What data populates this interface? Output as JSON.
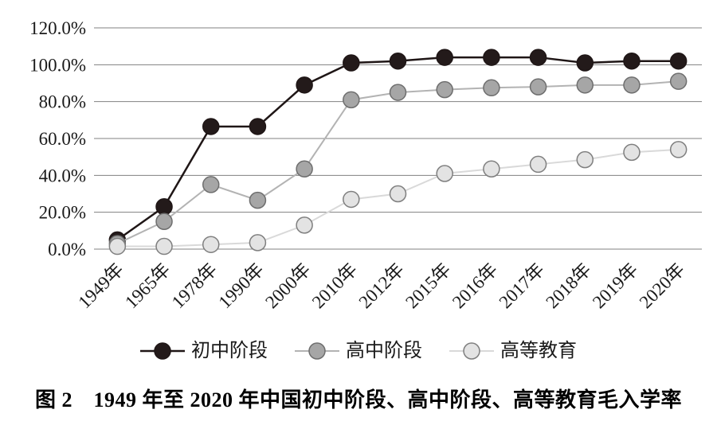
{
  "figure": {
    "caption": "图 2　1949 年至 2020 年中国初中阶段、高中阶段、高等教育毛入学率"
  },
  "chart_data": {
    "type": "line",
    "title": "",
    "xlabel": "",
    "ylabel": "",
    "categories": [
      "1949年",
      "1965年",
      "1978年",
      "1990年",
      "2000年",
      "2010年",
      "2012年",
      "2015年",
      "2016年",
      "2017年",
      "2018年",
      "2019年",
      "2020年"
    ],
    "series": [
      {
        "name": "初中阶段",
        "key": "junior-high",
        "values": [
          5,
          23,
          66.5,
          66.5,
          89,
          101,
          102,
          104,
          104,
          104,
          101,
          102,
          102
        ],
        "line_color": "#1f1616",
        "line_width": 2.5,
        "marker_fill": "#231a1a",
        "marker_stroke": "#1f1616",
        "marker_radius": 10
      },
      {
        "name": "高中阶段",
        "key": "senior-high",
        "values": [
          3,
          15,
          35,
          26.5,
          43.5,
          81,
          85,
          86.5,
          87.5,
          88,
          89,
          89,
          91
        ],
        "line_color": "#b3b3b3",
        "line_width": 2,
        "marker_fill": "#a6a6a6",
        "marker_stroke": "#6e6e6e",
        "marker_radius": 10
      },
      {
        "name": "高等教育",
        "key": "higher-ed",
        "values": [
          1.5,
          1.5,
          2.5,
          3.5,
          13,
          27,
          30,
          41,
          43.5,
          46,
          48.5,
          52.5,
          54
        ],
        "line_color": "#d9d9d9",
        "line_width": 2,
        "marker_fill": "#e3e3e3",
        "marker_stroke": "#7f7f7f",
        "marker_radius": 10
      }
    ],
    "yticks": {
      "values": [
        0,
        20,
        40,
        60,
        80,
        100,
        120
      ],
      "labels": [
        "0.0%",
        "20.0%",
        "40.0%",
        "60.0%",
        "80.0%",
        "100.0%",
        "120.0%"
      ]
    },
    "ylim": [
      0,
      120
    ],
    "grid": true,
    "gridline_color": "#808080",
    "legend_position": "bottom"
  }
}
